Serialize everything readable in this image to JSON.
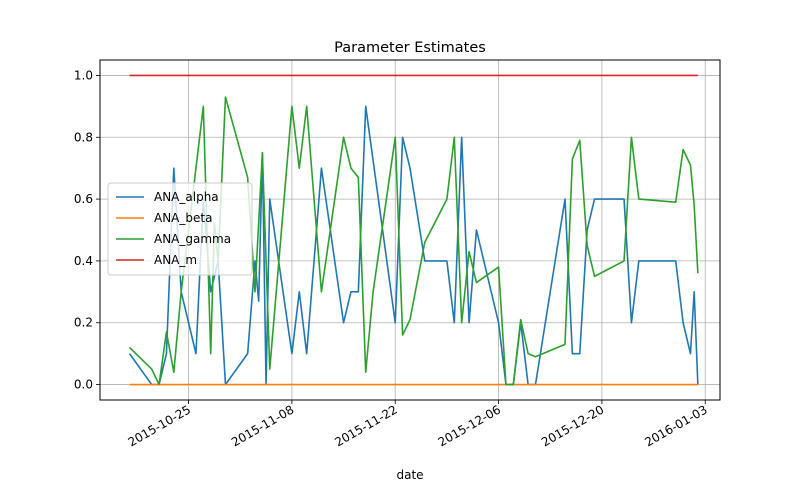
{
  "chart_data": {
    "type": "line",
    "title": "Parameter Estimates",
    "xlabel": "date",
    "ylabel": "",
    "xlim": [
      "2015-10-13",
      "2016-01-05"
    ],
    "ylim": [
      -0.05,
      1.05
    ],
    "x_ticks": [
      "2015-10-25",
      "2015-11-08",
      "2015-11-22",
      "2015-12-06",
      "2015-12-20",
      "2016-01-03"
    ],
    "y_ticks": [
      "0.0",
      "0.2",
      "0.4",
      "0.6",
      "0.8",
      "1.0"
    ],
    "grid": true,
    "legend_position": "center-left",
    "series": [
      {
        "name": "ANA_alpha",
        "color": "#1f77b4",
        "points": [
          [
            "2015-10-17",
            0.1
          ],
          [
            "2015-10-20",
            0.0
          ],
          [
            "2015-10-21",
            0.0
          ],
          [
            "2015-10-22",
            0.1
          ],
          [
            "2015-10-23",
            0.7
          ],
          [
            "2015-10-24",
            0.3
          ],
          [
            "2015-10-26",
            0.1
          ],
          [
            "2015-10-27",
            0.6
          ],
          [
            "2015-10-28",
            0.3
          ],
          [
            "2015-10-29",
            0.4
          ],
          [
            "2015-10-30",
            0.0
          ],
          [
            "2015-11-02",
            0.1
          ],
          [
            "2015-11-03",
            0.4
          ],
          [
            "2015-11-03T12:00",
            0.27
          ],
          [
            "2015-11-04",
            0.75
          ],
          [
            "2015-11-04T12:00",
            0.0
          ],
          [
            "2015-11-05",
            0.6
          ],
          [
            "2015-11-08",
            0.1
          ],
          [
            "2015-11-09",
            0.3
          ],
          [
            "2015-11-10",
            0.1
          ],
          [
            "2015-11-12",
            0.7
          ],
          [
            "2015-11-15",
            0.2
          ],
          [
            "2015-11-16",
            0.3
          ],
          [
            "2015-11-17",
            0.3
          ],
          [
            "2015-11-18",
            0.9
          ],
          [
            "2015-11-22",
            0.2
          ],
          [
            "2015-11-23",
            0.8
          ],
          [
            "2015-11-24",
            0.7
          ],
          [
            "2015-11-26",
            0.4
          ],
          [
            "2015-11-29",
            0.4
          ],
          [
            "2015-11-30",
            0.2
          ],
          [
            "2015-12-01",
            0.8
          ],
          [
            "2015-12-02",
            0.2
          ],
          [
            "2015-12-03",
            0.5
          ],
          [
            "2015-12-06",
            0.2
          ],
          [
            "2015-12-07",
            0.0
          ],
          [
            "2015-12-08",
            0.0
          ],
          [
            "2015-12-09",
            0.2
          ],
          [
            "2015-12-10",
            0.0
          ],
          [
            "2015-12-11",
            0.0
          ],
          [
            "2015-12-15",
            0.6
          ],
          [
            "2015-12-16",
            0.1
          ],
          [
            "2015-12-17",
            0.1
          ],
          [
            "2015-12-18",
            0.5
          ],
          [
            "2015-12-19",
            0.6
          ],
          [
            "2015-12-23",
            0.6
          ],
          [
            "2015-12-24",
            0.2
          ],
          [
            "2015-12-25",
            0.4
          ],
          [
            "2015-12-30",
            0.4
          ],
          [
            "2015-12-31",
            0.2
          ],
          [
            "2016-01-01",
            0.1
          ],
          [
            "2016-01-01T12:00",
            0.3
          ],
          [
            "2016-01-02",
            0.0
          ]
        ]
      },
      {
        "name": "ANA_beta",
        "color": "#ff7f0e",
        "points": [
          [
            "2015-10-17",
            0.0
          ],
          [
            "2016-01-02",
            0.0
          ]
        ]
      },
      {
        "name": "ANA_gamma",
        "color": "#2ca02c",
        "points": [
          [
            "2015-10-17",
            0.12
          ],
          [
            "2015-10-20",
            0.05
          ],
          [
            "2015-10-21",
            0.0
          ],
          [
            "2015-10-22",
            0.17
          ],
          [
            "2015-10-23",
            0.04
          ],
          [
            "2015-10-24",
            0.3
          ],
          [
            "2015-10-27",
            0.9
          ],
          [
            "2015-10-28",
            0.1
          ],
          [
            "2015-10-28T12:00",
            0.52
          ],
          [
            "2015-10-29",
            0.4
          ],
          [
            "2015-10-30",
            0.93
          ],
          [
            "2015-11-02",
            0.67
          ],
          [
            "2015-11-03",
            0.3
          ],
          [
            "2015-11-04",
            0.75
          ],
          [
            "2015-11-05",
            0.05
          ],
          [
            "2015-11-08",
            0.9
          ],
          [
            "2015-11-09",
            0.7
          ],
          [
            "2015-11-10",
            0.9
          ],
          [
            "2015-11-12",
            0.3
          ],
          [
            "2015-11-15",
            0.8
          ],
          [
            "2015-11-16",
            0.7
          ],
          [
            "2015-11-17",
            0.67
          ],
          [
            "2015-11-18",
            0.04
          ],
          [
            "2015-11-19",
            0.3
          ],
          [
            "2015-11-22",
            0.8
          ],
          [
            "2015-11-23",
            0.16
          ],
          [
            "2015-11-24",
            0.21
          ],
          [
            "2015-11-26",
            0.46
          ],
          [
            "2015-11-29",
            0.6
          ],
          [
            "2015-11-30",
            0.8
          ],
          [
            "2015-12-01",
            0.2
          ],
          [
            "2015-12-02",
            0.43
          ],
          [
            "2015-12-03",
            0.33
          ],
          [
            "2015-12-06",
            0.38
          ],
          [
            "2015-12-07",
            0.0
          ],
          [
            "2015-12-08",
            0.0
          ],
          [
            "2015-12-09",
            0.21
          ],
          [
            "2015-12-10",
            0.1
          ],
          [
            "2015-12-11",
            0.09
          ],
          [
            "2015-12-15",
            0.13
          ],
          [
            "2015-12-16",
            0.73
          ],
          [
            "2015-12-17",
            0.79
          ],
          [
            "2015-12-18",
            0.45
          ],
          [
            "2015-12-19",
            0.35
          ],
          [
            "2015-12-23",
            0.4
          ],
          [
            "2015-12-24",
            0.8
          ],
          [
            "2015-12-25",
            0.6
          ],
          [
            "2015-12-30",
            0.59
          ],
          [
            "2015-12-31",
            0.76
          ],
          [
            "2016-01-01",
            0.71
          ],
          [
            "2016-01-01T12:00",
            0.58
          ],
          [
            "2016-01-02",
            0.36
          ]
        ]
      },
      {
        "name": "ANA_m",
        "color": "#d62728",
        "points": [
          [
            "2015-10-17",
            1.0
          ],
          [
            "2016-01-02",
            1.0
          ]
        ]
      }
    ]
  }
}
